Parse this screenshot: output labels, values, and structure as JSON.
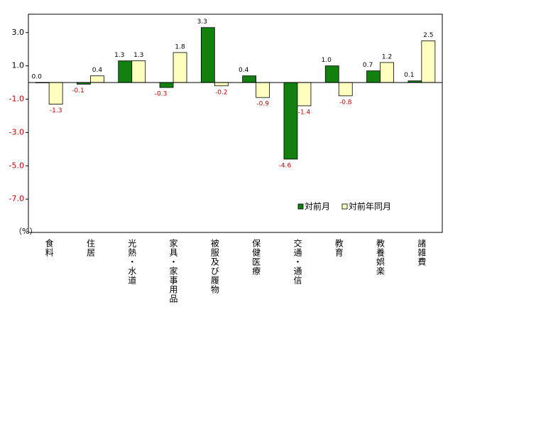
{
  "chart_data": {
    "type": "bar",
    "categories": [
      "食料",
      "住居",
      "光熱・水道",
      "家具・家事用品",
      "被服及び履物",
      "保健医療",
      "交通・通信",
      "教育",
      "教養娯楽",
      "諸雑費"
    ],
    "series": [
      {
        "name": "対前月",
        "color": "#11800f",
        "values": [
          0.0,
          -0.1,
          1.3,
          -0.3,
          3.3,
          0.4,
          -4.6,
          1.0,
          0.7,
          0.1
        ],
        "value_labels": [
          "0.0",
          "-0.1",
          "1.3",
          "-0.3",
          "3.3",
          "0.4",
          "-4.6",
          "1.0",
          "0.7",
          "0.1"
        ]
      },
      {
        "name": "対前年同月",
        "color": "#ffffc0",
        "values": [
          -1.3,
          0.4,
          1.3,
          1.8,
          -0.2,
          -0.9,
          -1.4,
          -0.8,
          1.2,
          2.5
        ],
        "value_labels": [
          "-1.3",
          "0.4",
          "1.3",
          "1.8",
          "-0.2",
          "-0.9",
          "-1.4",
          "-0.8",
          "1.2",
          "2.5"
        ]
      }
    ],
    "y_unit": "（%）",
    "ylim": [
      -9.0,
      4.1
    ],
    "yticks": [
      {
        "value": 3,
        "label": "3.0"
      },
      {
        "value": 1,
        "label": "1.0"
      },
      {
        "value": -1,
        "label": "-1.0"
      },
      {
        "value": -3,
        "label": "-3.0"
      },
      {
        "value": -5,
        "label": "-5.0"
      },
      {
        "value": -7,
        "label": "-7.0"
      }
    ],
    "negative_color": "#cc0000",
    "legend": "lower-right",
    "grid": false
  }
}
